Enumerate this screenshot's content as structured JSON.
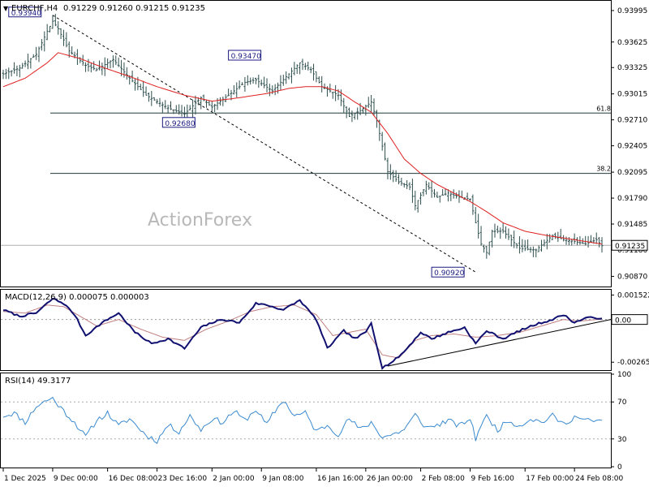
{
  "header": {
    "symbol_label": "EURCHF,H4",
    "ohlc": "0.91229 0.91260 0.91215 0.91235",
    "dropdown_glyph": "▼"
  },
  "watermark": "ActionForex",
  "chart_data": [
    {
      "type": "candlestick",
      "name": "EURCHF,H4",
      "ylim": [
        0.9076,
        0.941
      ],
      "y_ticks": [
        "0.93995",
        "0.93625",
        "0.93325",
        "0.93015",
        "0.92710",
        "0.92405",
        "0.92095",
        "0.91790",
        "0.91485",
        "0.91180",
        "0.90870"
      ],
      "current_price": 0.91235,
      "current_price_label": "0.91235",
      "fib_levels": [
        {
          "label": "61.8",
          "value": 0.9279
        },
        {
          "label": "38.2",
          "value": 0.9208
        }
      ],
      "annotations": [
        {
          "label": "0.93940",
          "value": 0.9394
        },
        {
          "label": "0.93470",
          "value": 0.9347
        },
        {
          "label": "0.92680",
          "value": 0.9268
        },
        {
          "label": "0.90920",
          "value": 0.9092
        }
      ],
      "close_path": [
        [
          0,
          0.9325
        ],
        [
          6,
          0.9332
        ],
        [
          12,
          0.9348
        ],
        [
          16,
          0.9375
        ],
        [
          18,
          0.9387
        ],
        [
          20,
          0.9378
        ],
        [
          24,
          0.9352
        ],
        [
          30,
          0.9335
        ],
        [
          34,
          0.933
        ],
        [
          40,
          0.9342
        ],
        [
          46,
          0.932
        ],
        [
          52,
          0.93
        ],
        [
          60,
          0.9285
        ],
        [
          66,
          0.9278
        ],
        [
          72,
          0.9297
        ],
        [
          76,
          0.9286
        ],
        [
          82,
          0.93
        ],
        [
          88,
          0.9315
        ],
        [
          92,
          0.9318
        ],
        [
          98,
          0.9305
        ],
        [
          104,
          0.9325
        ],
        [
          108,
          0.9338
        ],
        [
          112,
          0.933
        ],
        [
          116,
          0.931
        ],
        [
          122,
          0.93
        ],
        [
          126,
          0.9275
        ],
        [
          130,
          0.9282
        ],
        [
          134,
          0.9292
        ],
        [
          136,
          0.927
        ],
        [
          140,
          0.921
        ],
        [
          144,
          0.9198
        ],
        [
          148,
          0.9192
        ],
        [
          150,
          0.917
        ],
        [
          154,
          0.9195
        ],
        [
          158,
          0.918
        ],
        [
          162,
          0.9185
        ],
        [
          166,
          0.918
        ],
        [
          170,
          0.9178
        ],
        [
          172,
          0.915
        ],
        [
          174,
          0.9125
        ],
        [
          176,
          0.9115
        ],
        [
          178,
          0.914
        ],
        [
          182,
          0.914
        ],
        [
          188,
          0.912
        ],
        [
          194,
          0.9118
        ],
        [
          200,
          0.9135
        ],
        [
          204,
          0.913
        ],
        [
          208,
          0.9128
        ],
        [
          212,
          0.9125
        ],
        [
          216,
          0.913
        ],
        [
          218,
          0.9123
        ]
      ],
      "ma_path": [
        [
          0,
          0.931
        ],
        [
          8,
          0.932
        ],
        [
          16,
          0.9338
        ],
        [
          20,
          0.935
        ],
        [
          28,
          0.9343
        ],
        [
          36,
          0.9333
        ],
        [
          46,
          0.9322
        ],
        [
          56,
          0.931
        ],
        [
          66,
          0.93
        ],
        [
          76,
          0.9293
        ],
        [
          86,
          0.9297
        ],
        [
          96,
          0.9302
        ],
        [
          104,
          0.9308
        ],
        [
          110,
          0.931
        ],
        [
          116,
          0.931
        ],
        [
          122,
          0.9305
        ],
        [
          128,
          0.9292
        ],
        [
          134,
          0.928
        ],
        [
          140,
          0.9255
        ],
        [
          146,
          0.9225
        ],
        [
          152,
          0.9208
        ],
        [
          158,
          0.9195
        ],
        [
          164,
          0.9185
        ],
        [
          170,
          0.9175
        ],
        [
          176,
          0.9163
        ],
        [
          182,
          0.915
        ],
        [
          190,
          0.914
        ],
        [
          198,
          0.9135
        ],
        [
          208,
          0.913
        ],
        [
          218,
          0.9125
        ]
      ],
      "trendline": [
        [
          18,
          0.9394
        ],
        [
          172,
          0.9092
        ]
      ],
      "x_labels": [
        "1 Dec 2025",
        "9 Dec 00:00",
        "16 Dec 08:00",
        "23 Dec 16:00",
        "2 Jan 00:00",
        "9 Jan 08:00",
        "16 Jan 16:00",
        "26 Jan 00:00",
        "2 Feb 08:00",
        "9 Feb 16:00",
        "17 Feb 00:00",
        "24 Feb 08:00"
      ],
      "x_label_bars": [
        0,
        18,
        38,
        56,
        76,
        94,
        114,
        132,
        152,
        170,
        190,
        208
      ]
    },
    {
      "type": "line",
      "name": "MACD(12,26,9)",
      "header": "MACD(12,26,9) 0.000075 0.000003",
      "ylim": [
        -0.0031,
        0.0018
      ],
      "y_ticks": [
        "0.001522",
        "0.00",
        "-0.002657"
      ],
      "current_label": "0.00",
      "macd_path": [
        [
          0,
          0.0006
        ],
        [
          6,
          0.0002
        ],
        [
          12,
          0.0004
        ],
        [
          18,
          0.0013
        ],
        [
          22,
          0.001
        ],
        [
          26,
          0.0003
        ],
        [
          30,
          -0.001
        ],
        [
          36,
          -0.0002
        ],
        [
          42,
          0.0004
        ],
        [
          48,
          -0.0008
        ],
        [
          54,
          -0.0015
        ],
        [
          60,
          -0.0012
        ],
        [
          66,
          -0.0018
        ],
        [
          72,
          -0.0005
        ],
        [
          76,
          -0.0002
        ],
        [
          80,
          0.0
        ],
        [
          86,
          -0.0002
        ],
        [
          92,
          0.001
        ],
        [
          96,
          0.0009
        ],
        [
          102,
          0.0006
        ],
        [
          108,
          0.0012
        ],
        [
          114,
          0.0
        ],
        [
          118,
          -0.0018
        ],
        [
          124,
          -0.0007
        ],
        [
          128,
          -0.0012
        ],
        [
          132,
          -0.0008
        ],
        [
          134,
          -0.0002
        ],
        [
          138,
          -0.003
        ],
        [
          142,
          -0.0026
        ],
        [
          146,
          -0.002
        ],
        [
          152,
          -0.0008
        ],
        [
          156,
          -0.0012
        ],
        [
          162,
          -0.0008
        ],
        [
          168,
          -0.0005
        ],
        [
          172,
          -0.0015
        ],
        [
          176,
          -0.0007
        ],
        [
          182,
          -0.0012
        ],
        [
          188,
          -0.0007
        ],
        [
          194,
          -0.0003
        ],
        [
          200,
          0.0
        ],
        [
          204,
          0.0003
        ],
        [
          208,
          -0.0002
        ],
        [
          212,
          0.0001
        ],
        [
          216,
          0.0001
        ]
      ],
      "signal_path": [
        [
          0,
          0.0005
        ],
        [
          8,
          0.0004
        ],
        [
          16,
          0.0009
        ],
        [
          22,
          0.0008
        ],
        [
          28,
          0.0002
        ],
        [
          34,
          -0.0004
        ],
        [
          42,
          0.0
        ],
        [
          50,
          -0.0006
        ],
        [
          58,
          -0.0011
        ],
        [
          66,
          -0.0013
        ],
        [
          74,
          -0.0006
        ],
        [
          82,
          -0.0001
        ],
        [
          90,
          0.0005
        ],
        [
          98,
          0.0008
        ],
        [
          106,
          0.0009
        ],
        [
          114,
          0.0003
        ],
        [
          120,
          -0.001
        ],
        [
          126,
          -0.0008
        ],
        [
          132,
          -0.0006
        ],
        [
          138,
          -0.0022
        ],
        [
          144,
          -0.0024
        ],
        [
          150,
          -0.0013
        ],
        [
          156,
          -0.001
        ],
        [
          164,
          -0.0009
        ],
        [
          172,
          -0.0011
        ],
        [
          180,
          -0.001
        ],
        [
          188,
          -0.0008
        ],
        [
          196,
          -0.0004
        ],
        [
          204,
          0.0
        ],
        [
          210,
          -0.0001
        ],
        [
          216,
          0.0
        ]
      ],
      "trendline": [
        [
          140,
          -0.0029
        ],
        [
          218,
          0.0
        ]
      ]
    },
    {
      "type": "line",
      "name": "RSI(14)",
      "header": "RSI(14) 49.3177",
      "ylim": [
        0,
        100
      ],
      "y_ticks": [
        "100",
        "70",
        "30",
        "0"
      ],
      "levels": [
        70,
        30
      ],
      "rsi_path": [
        [
          0,
          55
        ],
        [
          4,
          58
        ],
        [
          8,
          48
        ],
        [
          12,
          65
        ],
        [
          16,
          72
        ],
        [
          18,
          74
        ],
        [
          22,
          60
        ],
        [
          26,
          48
        ],
        [
          30,
          32
        ],
        [
          34,
          50
        ],
        [
          38,
          58
        ],
        [
          42,
          44
        ],
        [
          46,
          52
        ],
        [
          52,
          34
        ],
        [
          56,
          28
        ],
        [
          60,
          45
        ],
        [
          64,
          38
        ],
        [
          68,
          55
        ],
        [
          72,
          40
        ],
        [
          76,
          52
        ],
        [
          80,
          48
        ],
        [
          84,
          60
        ],
        [
          88,
          50
        ],
        [
          92,
          62
        ],
        [
          96,
          45
        ],
        [
          98,
          56
        ],
        [
          102,
          72
        ],
        [
          106,
          55
        ],
        [
          110,
          58
        ],
        [
          114,
          38
        ],
        [
          118,
          45
        ],
        [
          122,
          35
        ],
        [
          126,
          52
        ],
        [
          130,
          40
        ],
        [
          134,
          48
        ],
        [
          138,
          32
        ],
        [
          142,
          35
        ],
        [
          146,
          40
        ],
        [
          150,
          56
        ],
        [
          154,
          42
        ],
        [
          158,
          45
        ],
        [
          162,
          50
        ],
        [
          166,
          44
        ],
        [
          170,
          52
        ],
        [
          172,
          30
        ],
        [
          174,
          46
        ],
        [
          176,
          54
        ],
        [
          180,
          40
        ],
        [
          184,
          50
        ],
        [
          188,
          44
        ],
        [
          192,
          52
        ],
        [
          196,
          48
        ],
        [
          200,
          55
        ],
        [
          204,
          46
        ],
        [
          208,
          54
        ],
        [
          212,
          50
        ],
        [
          216,
          49
        ]
      ]
    }
  ]
}
